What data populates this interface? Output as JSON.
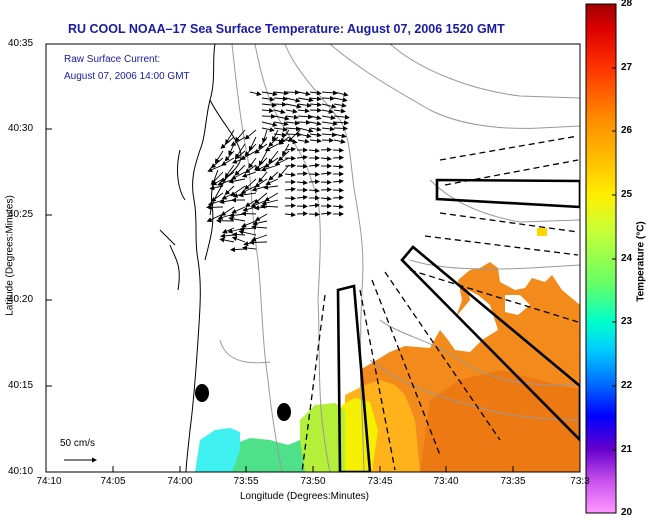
{
  "title": "RU COOL  NOAA–17  Sea Surface Temperature:  August 07, 2006 1520 GMT",
  "current_label": "Raw Surface Current:",
  "current_time": "August 07, 2006 14:00 GMT",
  "scale_label": "50 cm/s",
  "y_axis_title": "Latitude (Degrees:Minutes)",
  "x_axis_title": "Longitude (Degrees:Minutes)",
  "colorbar_title": "Temperature (°C)",
  "y_ticks": [
    "40:35",
    "40:30",
    "40:25",
    "40:20",
    "40:15",
    "40:10"
  ],
  "x_ticks": [
    "74:10",
    "74:05",
    "74:00",
    "73:55",
    "73:50",
    "73:45",
    "73:40",
    "73:35",
    "73:3"
  ],
  "colorbar_ticks": [
    "28",
    "27",
    "26",
    "25",
    "24",
    "23",
    "22",
    "21",
    "20"
  ],
  "colors": {
    "title": "#1a1aa8",
    "land": "#ffffff",
    "colormap_top": "#a00000",
    "colormap_bottom": "#ff99ff"
  }
}
